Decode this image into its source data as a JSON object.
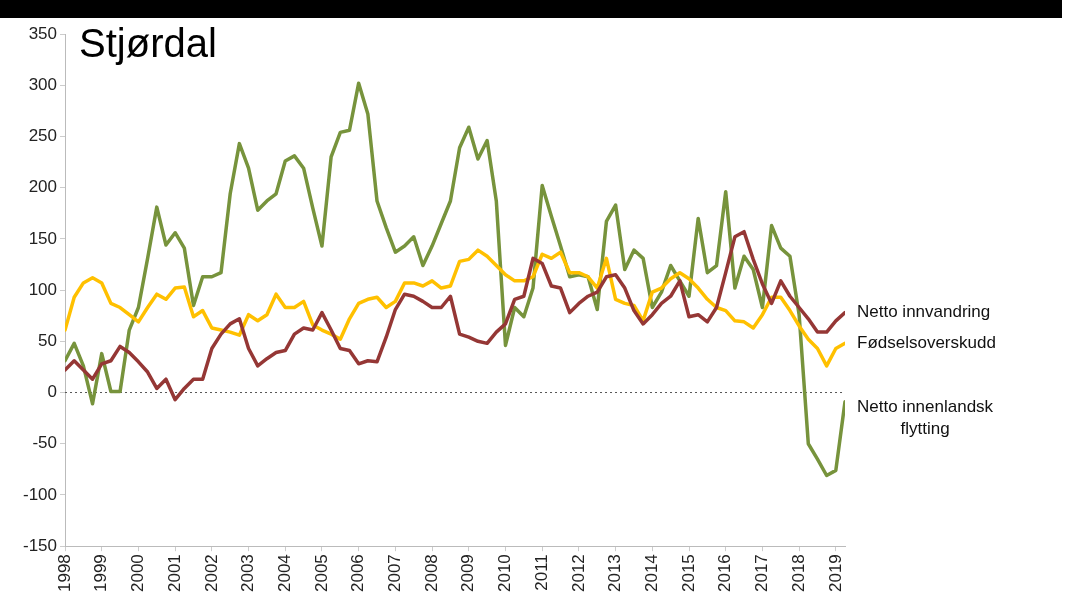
{
  "chart_data": {
    "type": "line",
    "title": "Stjørdal",
    "x": [
      1998,
      1998.25,
      1998.5,
      1998.75,
      1999,
      1999.25,
      1999.5,
      1999.75,
      2000,
      2000.25,
      2000.5,
      2000.75,
      2001,
      2001.25,
      2001.5,
      2001.75,
      2002,
      2002.25,
      2002.5,
      2002.75,
      2003,
      2003.25,
      2003.5,
      2003.75,
      2004,
      2004.25,
      2004.5,
      2004.75,
      2005,
      2005.25,
      2005.5,
      2005.75,
      2006,
      2006.25,
      2006.5,
      2006.75,
      2007,
      2007.25,
      2007.5,
      2007.75,
      2008,
      2008.25,
      2008.5,
      2008.75,
      2009,
      2009.25,
      2009.5,
      2009.75,
      2010,
      2010.25,
      2010.5,
      2010.75,
      2011,
      2011.25,
      2011.5,
      2011.75,
      2012,
      2012.25,
      2012.5,
      2012.75,
      2013,
      2013.25,
      2013.5,
      2013.75,
      2014,
      2014.25,
      2014.5,
      2014.75,
      2015,
      2015.25,
      2015.5,
      2015.75,
      2016,
      2016.25,
      2016.5,
      2016.75,
      2017,
      2017.25,
      2017.5,
      2017.75,
      2018,
      2018.25,
      2018.5,
      2018.75,
      2019,
      2019.25
    ],
    "series": [
      {
        "name": "Netto innvandring",
        "color": "#953735",
        "values": [
          22,
          31,
          22,
          13,
          28,
          31,
          45,
          39,
          30,
          20,
          4,
          13,
          -7,
          4,
          13,
          13,
          43,
          57,
          67,
          72,
          43,
          26,
          33,
          39,
          41,
          57,
          63,
          61,
          78,
          61,
          43,
          41,
          28,
          31,
          30,
          54,
          81,
          96,
          94,
          89,
          83,
          83,
          94,
          57,
          54,
          50,
          48,
          59,
          67,
          91,
          94,
          131,
          126,
          104,
          102,
          78,
          87,
          94,
          98,
          113,
          115,
          102,
          80,
          67,
          76,
          87,
          94,
          109,
          74,
          76,
          69,
          83,
          117,
          152,
          157,
          130,
          106,
          87,
          109,
          94,
          83,
          72,
          59,
          59,
          70,
          78
        ]
      },
      {
        "name": "Fødselsoverskudd",
        "color": "#ffc000",
        "values": [
          61,
          93,
          107,
          112,
          107,
          87,
          83,
          76,
          69,
          83,
          96,
          91,
          102,
          103,
          74,
          80,
          63,
          61,
          59,
          56,
          76,
          70,
          76,
          96,
          83,
          83,
          89,
          66,
          61,
          57,
          52,
          72,
          87,
          91,
          93,
          83,
          89,
          107,
          107,
          104,
          109,
          102,
          104,
          128,
          130,
          139,
          133,
          124,
          115,
          109,
          109,
          113,
          135,
          131,
          137,
          117,
          117,
          113,
          102,
          131,
          91,
          87,
          85,
          70,
          98,
          102,
          111,
          117,
          111,
          102,
          91,
          83,
          80,
          70,
          69,
          63,
          76,
          93,
          93,
          80,
          65,
          52,
          43,
          26,
          43,
          48
        ]
      },
      {
        "name": "Netto innenlandsk flytting",
        "color": "#77933c",
        "values": [
          31,
          48,
          26,
          -11,
          38,
          1,
          1,
          61,
          83,
          131,
          181,
          144,
          156,
          141,
          85,
          113,
          113,
          117,
          194,
          243,
          219,
          178,
          187,
          194,
          226,
          231,
          219,
          180,
          143,
          230,
          254,
          256,
          302,
          272,
          187,
          161,
          137,
          143,
          152,
          124,
          143,
          165,
          187,
          239,
          259,
          228,
          246,
          187,
          46,
          83,
          74,
          102,
          202,
          172,
          143,
          113,
          115,
          113,
          81,
          167,
          183,
          120,
          139,
          131,
          83,
          98,
          124,
          109,
          94,
          170,
          117,
          124,
          196,
          102,
          133,
          120,
          83,
          163,
          141,
          133,
          76,
          -50,
          -65,
          -81,
          -76,
          -9
        ]
      }
    ],
    "xlim": [
      1998,
      2019.25
    ],
    "xticks": [
      1998,
      1999,
      2000,
      2001,
      2002,
      2003,
      2004,
      2005,
      2006,
      2007,
      2008,
      2009,
      2010,
      2011,
      2012,
      2013,
      2014,
      2015,
      2016,
      2017,
      2018,
      2019
    ],
    "ylim": [
      -150,
      350
    ],
    "yticks": [
      -150,
      -100,
      -50,
      0,
      50,
      100,
      150,
      200,
      250,
      300,
      350
    ],
    "ref_lines": [
      {
        "axis": "y",
        "value": 0,
        "line_style": "dotted",
        "color": "#555555"
      }
    ],
    "grid": false,
    "legend": false,
    "marker": "none",
    "line_style": "solid"
  }
}
